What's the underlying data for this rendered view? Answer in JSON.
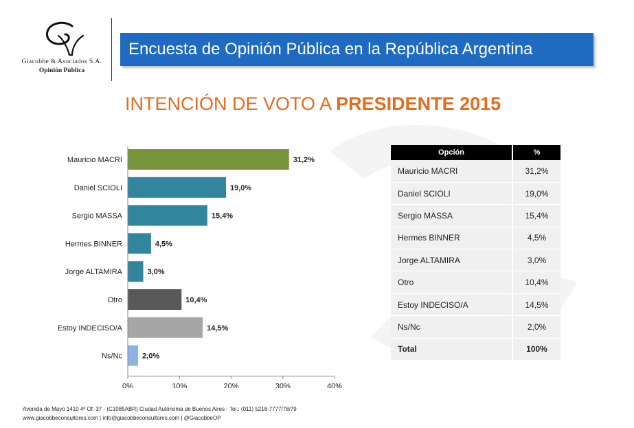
{
  "header": {
    "firm_name": "Giacobbe & Asociados S.A.",
    "firm_subtitle": "Opinión Pública",
    "banner_title": "Encuesta de Opinión Pública en la República Argentina"
  },
  "title": {
    "prefix": "INTENCIÓN DE VOTO A ",
    "emphasis": "PRESIDENTE 2015"
  },
  "colors": {
    "banner": "#1f6bc2",
    "title": "#e46c1c",
    "bar_green": "#77933c",
    "bar_teal": "#31859c",
    "bar_dark": "#595959",
    "bar_gray": "#a6a6a6",
    "bar_lightblue": "#8db3e2"
  },
  "chart_data": {
    "type": "bar",
    "orientation": "horizontal",
    "title": "INTENCIÓN DE VOTO A PRESIDENTE 2015",
    "categories": [
      "Mauricio MACRI",
      "Daniel SCIOLI",
      "Sergio MASSA",
      "Hermes BINNER",
      "Jorge ALTAMIRA",
      "Otro",
      "Estoy INDECISO/A",
      "Ns/Nc"
    ],
    "values": [
      31.2,
      19.0,
      15.4,
      4.5,
      3.0,
      10.4,
      14.5,
      2.0
    ],
    "value_labels": [
      "31,2%",
      "19,0%",
      "15,4%",
      "4,5%",
      "3,0%",
      "10,4%",
      "14,5%",
      "2,0%"
    ],
    "bar_colors": [
      "#77933c",
      "#31859c",
      "#31859c",
      "#31859c",
      "#31859c",
      "#595959",
      "#a6a6a6",
      "#8db3e2"
    ],
    "xlim": [
      0,
      40
    ],
    "xticks": [
      0,
      10,
      20,
      30,
      40
    ],
    "xtick_labels": [
      "0%",
      "10%",
      "20%",
      "30%",
      "40%"
    ],
    "xlabel": "",
    "ylabel": "",
    "grid": false
  },
  "table": {
    "headers": [
      "Opción",
      "%"
    ],
    "rows": [
      {
        "option": "Mauricio MACRI",
        "pct": "31,2%"
      },
      {
        "option": "Daniel SCIOLI",
        "pct": "19,0%"
      },
      {
        "option": "Sergio MASSA",
        "pct": "15,4%"
      },
      {
        "option": "Hermes BINNER",
        "pct": "4,5%"
      },
      {
        "option": "Jorge ALTAMIRA",
        "pct": "3,0%"
      },
      {
        "option": "Otro",
        "pct": "10,4%"
      },
      {
        "option": "Estoy INDECISO/A",
        "pct": "14,5%"
      },
      {
        "option": "Ns/Nc",
        "pct": "2,0%"
      }
    ],
    "total": {
      "option": "Total",
      "pct": "100%"
    }
  },
  "footer": {
    "line1": "Avenida de Mayo 1410 4º Of. 37 - (C1085ABR) Ciudad Autónoma de Buenos Aires - Tel.: (011) 5218-7777/78/79",
    "line2": "www.giacobbeconsultores.com | info@giacobbeconsultores.com | @GiacobbeOP"
  }
}
